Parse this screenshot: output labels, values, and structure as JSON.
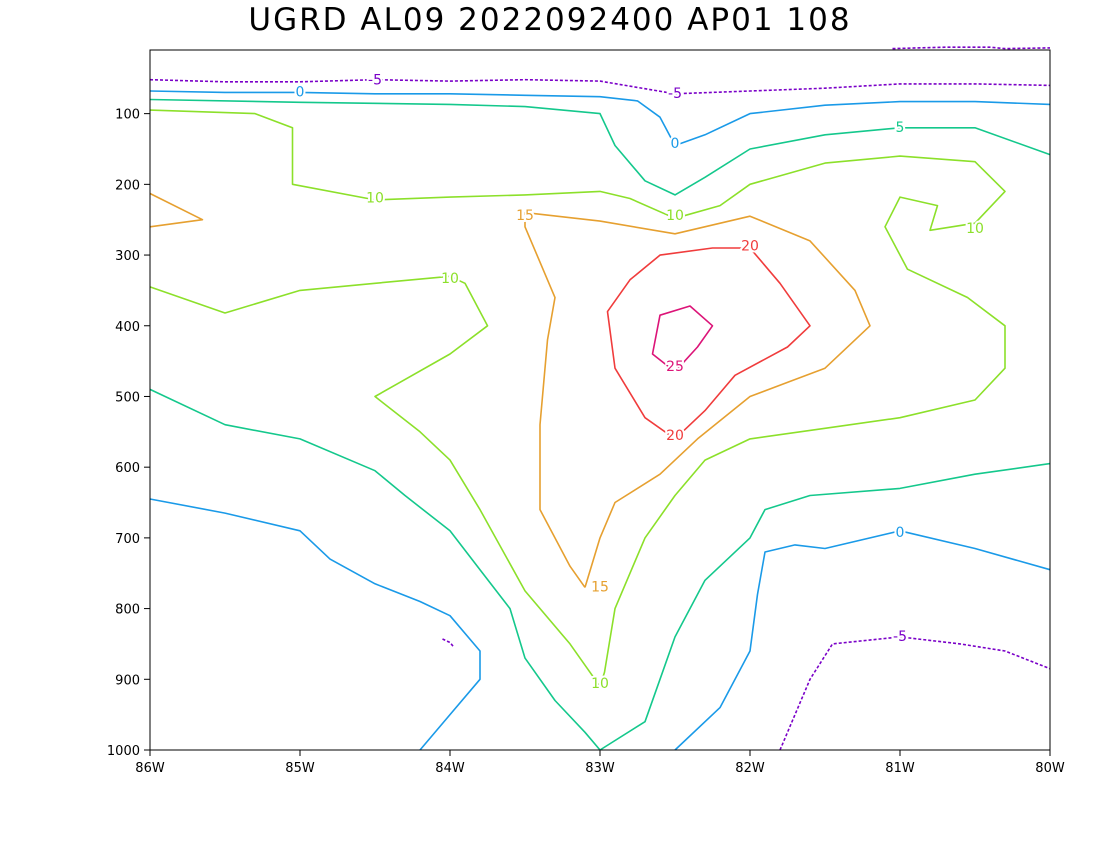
{
  "chart_data": {
    "type": "contour",
    "title": "UGRD AL09 2022092400 AP01 108",
    "x_axis": {
      "range": [
        -86,
        -80
      ],
      "ticks": [
        -86,
        -85,
        -84,
        -83,
        -82,
        -81,
        -80
      ],
      "tick_labels": [
        "86W",
        "85W",
        "84W",
        "83W",
        "82W",
        "81W",
        "80W"
      ]
    },
    "y_axis": {
      "range": [
        1000,
        10
      ],
      "inverted": true,
      "ticks": [
        1000,
        900,
        800,
        700,
        600,
        500,
        400,
        300,
        200,
        100
      ],
      "tick_labels": [
        "1000",
        "900",
        "800",
        "700",
        "600",
        "500",
        "400",
        "300",
        "200",
        "100"
      ]
    },
    "grid": false,
    "contour_levels": [
      -5,
      0,
      5,
      10,
      15,
      20,
      25
    ],
    "level_colors": {
      "-5": "#7a00c8",
      "0": "#1a9ae8",
      "5": "#14c88c",
      "10": "#8ce02a",
      "15": "#e6a030",
      "20": "#f03c3c",
      "25": "#dc1478"
    },
    "contours": [
      {
        "level": -5,
        "label": "-5",
        "dashed": true,
        "points": [
          [
            -86,
            52
          ],
          [
            -85.5,
            55
          ],
          [
            -85,
            55
          ],
          [
            -84.5,
            52
          ],
          [
            -84,
            54
          ],
          [
            -83.5,
            52
          ],
          [
            -83,
            54
          ],
          [
            -82.5,
            72
          ],
          [
            -82,
            68
          ],
          [
            -81.5,
            64
          ],
          [
            -81,
            58
          ],
          [
            -80.5,
            58
          ],
          [
            -80,
            60
          ]
        ]
      },
      {
        "level": -5,
        "label": "",
        "dashed": true,
        "points": [
          [
            -81.05,
            8
          ],
          [
            -80.7,
            6
          ],
          [
            -80.4,
            6
          ],
          [
            -80.3,
            8
          ],
          [
            -80,
            7
          ]
        ]
      },
      {
        "level": -5,
        "label": "-5",
        "dashed": true,
        "points": [
          [
            -81.8,
            1000
          ],
          [
            -81.7,
            950
          ],
          [
            -81.6,
            900
          ],
          [
            -81.45,
            850
          ],
          [
            -81,
            840
          ],
          [
            -80.6,
            850
          ],
          [
            -80.3,
            860
          ],
          [
            -80,
            885
          ]
        ]
      },
      {
        "level": -5,
        "label": "",
        "dashed": true,
        "points": [
          [
            -84.05,
            843
          ],
          [
            -84,
            848
          ],
          [
            -83.98,
            853
          ]
        ]
      },
      {
        "level": 0,
        "label": "0",
        "dashed": false,
        "points": [
          [
            -86,
            68
          ],
          [
            -85.5,
            70
          ],
          [
            -85,
            70
          ],
          [
            -84.5,
            72
          ],
          [
            -84,
            72
          ],
          [
            -83.5,
            74
          ],
          [
            -83,
            76
          ],
          [
            -82.75,
            82
          ],
          [
            -82.6,
            105
          ],
          [
            -82.5,
            145
          ],
          [
            -82.3,
            130
          ],
          [
            -82,
            100
          ],
          [
            -81.5,
            88
          ],
          [
            -81,
            83
          ],
          [
            -80.5,
            83
          ],
          [
            -80,
            87
          ]
        ]
      },
      {
        "level": 0,
        "label": "0",
        "dashed": false,
        "points": [
          [
            -86,
            645
          ],
          [
            -85.5,
            665
          ],
          [
            -85,
            690
          ],
          [
            -84.8,
            730
          ],
          [
            -84.5,
            765
          ],
          [
            -84.2,
            790
          ],
          [
            -84,
            810
          ],
          [
            -83.8,
            860
          ],
          [
            -83.8,
            900
          ],
          [
            -84,
            950
          ],
          [
            -84.2,
            1000
          ]
        ]
      },
      {
        "level": 0,
        "label": "0",
        "dashed": false,
        "points": [
          [
            -82.5,
            1000
          ],
          [
            -82.2,
            940
          ],
          [
            -82,
            860
          ],
          [
            -81.95,
            780
          ],
          [
            -81.9,
            720
          ],
          [
            -81.7,
            710
          ],
          [
            -81.5,
            715
          ],
          [
            -81,
            690
          ],
          [
            -80.5,
            715
          ],
          [
            -80,
            745
          ]
        ]
      },
      {
        "level": 5,
        "label": "5",
        "dashed": false,
        "points": [
          [
            -86,
            80
          ],
          [
            -85,
            84
          ],
          [
            -84,
            87
          ],
          [
            -83.5,
            90
          ],
          [
            -83,
            100
          ],
          [
            -82.9,
            145
          ],
          [
            -82.7,
            195
          ],
          [
            -82.5,
            215
          ],
          [
            -82.3,
            190
          ],
          [
            -82,
            150
          ],
          [
            -81.5,
            130
          ],
          [
            -81,
            120
          ],
          [
            -80.5,
            120
          ],
          [
            -80,
            158
          ]
        ]
      },
      {
        "level": 5,
        "label": "",
        "dashed": false,
        "points": [
          [
            -86,
            490
          ],
          [
            -85.5,
            540
          ],
          [
            -85,
            560
          ],
          [
            -84.5,
            605
          ],
          [
            -84.3,
            640
          ],
          [
            -84,
            690
          ],
          [
            -83.8,
            745
          ],
          [
            -83.6,
            800
          ],
          [
            -83.5,
            870
          ],
          [
            -83.3,
            930
          ],
          [
            -83.1,
            975
          ],
          [
            -83,
            1000
          ]
        ]
      },
      {
        "level": 5,
        "label": "",
        "dashed": false,
        "points": [
          [
            -83,
            1000
          ],
          [
            -82.7,
            960
          ],
          [
            -82.6,
            900
          ],
          [
            -82.5,
            840
          ],
          [
            -82.3,
            760
          ],
          [
            -82,
            700
          ],
          [
            -81.9,
            660
          ],
          [
            -81.6,
            640
          ],
          [
            -81,
            630
          ],
          [
            -80.5,
            610
          ],
          [
            -80,
            595
          ]
        ]
      },
      {
        "level": 10,
        "label": "10",
        "dashed": false,
        "points": [
          [
            -86,
            95
          ],
          [
            -85.3,
            100
          ],
          [
            -85.05,
            120
          ],
          [
            -85.05,
            200
          ],
          [
            -84.5,
            222
          ],
          [
            -84,
            218
          ],
          [
            -83.5,
            215
          ],
          [
            -83,
            210
          ],
          [
            -82.8,
            220
          ],
          [
            -82.5,
            248
          ],
          [
            -82.2,
            230
          ],
          [
            -82,
            200
          ],
          [
            -81.5,
            170
          ],
          [
            -81,
            160
          ],
          [
            -80.5,
            168
          ],
          [
            -80.3,
            210
          ],
          [
            -80.5,
            255
          ],
          [
            -80.8,
            265
          ],
          [
            -80.75,
            230
          ],
          [
            -81,
            218
          ],
          [
            -81.1,
            260
          ],
          [
            -80.95,
            320
          ],
          [
            -80.55,
            360
          ],
          [
            -80.3,
            400
          ],
          [
            -80.3,
            460
          ],
          [
            -80.5,
            505
          ],
          [
            -81,
            530
          ],
          [
            -81.5,
            545
          ],
          [
            -82,
            560
          ],
          [
            -82.3,
            590
          ],
          [
            -82.5,
            640
          ],
          [
            -82.7,
            700
          ],
          [
            -82.9,
            800
          ],
          [
            -82.97,
            890
          ],
          [
            -83,
            910
          ],
          [
            -83.2,
            850
          ],
          [
            -83.5,
            775
          ],
          [
            -83.8,
            660
          ],
          [
            -84,
            590
          ],
          [
            -84.2,
            550
          ],
          [
            -84.5,
            500
          ],
          [
            -84,
            440
          ],
          [
            -83.75,
            400
          ],
          [
            -83.9,
            340
          ],
          [
            -84,
            330
          ],
          [
            -84.5,
            340
          ],
          [
            -85,
            350
          ],
          [
            -85.5,
            382
          ],
          [
            -86,
            345
          ]
        ]
      },
      {
        "level": 15,
        "label": "15",
        "dashed": false,
        "points": [
          [
            -86,
            213
          ],
          [
            -85.65,
            250
          ],
          [
            -86,
            260
          ]
        ]
      },
      {
        "level": 15,
        "label": "15",
        "dashed": false,
        "points": [
          [
            -83.1,
            770
          ],
          [
            -83.2,
            740
          ],
          [
            -83.4,
            660
          ],
          [
            -83.4,
            540
          ],
          [
            -83.35,
            420
          ],
          [
            -83.3,
            360
          ],
          [
            -83.5,
            260
          ],
          [
            -83.5,
            240
          ],
          [
            -83,
            252
          ],
          [
            -82.5,
            270
          ],
          [
            -82,
            245
          ],
          [
            -81.6,
            280
          ],
          [
            -81.3,
            350
          ],
          [
            -81.2,
            400
          ],
          [
            -81.5,
            460
          ],
          [
            -82,
            500
          ],
          [
            -82.35,
            560
          ],
          [
            -82.6,
            610
          ],
          [
            -82.9,
            650
          ],
          [
            -83,
            700
          ],
          [
            -83.1,
            770
          ]
        ]
      },
      {
        "level": 20,
        "label": "20",
        "dashed": false,
        "points": [
          [
            -82.5,
            560
          ],
          [
            -82.3,
            520
          ],
          [
            -82.1,
            470
          ],
          [
            -81.75,
            430
          ],
          [
            -81.6,
            400
          ],
          [
            -81.8,
            340
          ],
          [
            -82,
            290
          ],
          [
            -82.25,
            290
          ],
          [
            -82.6,
            300
          ],
          [
            -82.8,
            335
          ],
          [
            -82.95,
            380
          ],
          [
            -82.9,
            460
          ],
          [
            -82.7,
            530
          ],
          [
            -82.5,
            560
          ]
        ]
      },
      {
        "level": 25,
        "label": "25",
        "dashed": false,
        "points": [
          [
            -82.5,
            465
          ],
          [
            -82.35,
            430
          ],
          [
            -82.25,
            400
          ],
          [
            -82.4,
            372
          ],
          [
            -82.6,
            385
          ],
          [
            -82.65,
            440
          ],
          [
            -82.5,
            465
          ]
        ]
      }
    ],
    "contour_labels": [
      {
        "text": "-5",
        "x": -84.5,
        "y": 53,
        "level": -5
      },
      {
        "text": "-5",
        "x": -82.5,
        "y": 72,
        "level": -5
      },
      {
        "text": "-5",
        "x": -81,
        "y": 840,
        "level": -5
      },
      {
        "text": "0",
        "x": -85,
        "y": 70,
        "level": 0
      },
      {
        "text": "0",
        "x": -82.5,
        "y": 143,
        "level": 0
      },
      {
        "text": "0",
        "x": -81,
        "y": 693,
        "level": 0
      },
      {
        "text": "5",
        "x": -81,
        "y": 120,
        "level": 5
      },
      {
        "text": "10",
        "x": -84.5,
        "y": 220,
        "level": 10
      },
      {
        "text": "10",
        "x": -82.5,
        "y": 245,
        "level": 10
      },
      {
        "text": "10",
        "x": -80.5,
        "y": 263,
        "level": 10
      },
      {
        "text": "10",
        "x": -84,
        "y": 334,
        "level": 10
      },
      {
        "text": "10",
        "x": -83,
        "y": 907,
        "level": 10
      },
      {
        "text": "15",
        "x": -83.5,
        "y": 245,
        "level": 15
      },
      {
        "text": "15",
        "x": -83,
        "y": 770,
        "level": 15
      },
      {
        "text": "20",
        "x": -82,
        "y": 288,
        "level": 20
      },
      {
        "text": "20",
        "x": -82.5,
        "y": 556,
        "level": 20
      },
      {
        "text": "25",
        "x": -82.5,
        "y": 458,
        "level": 25
      }
    ]
  }
}
